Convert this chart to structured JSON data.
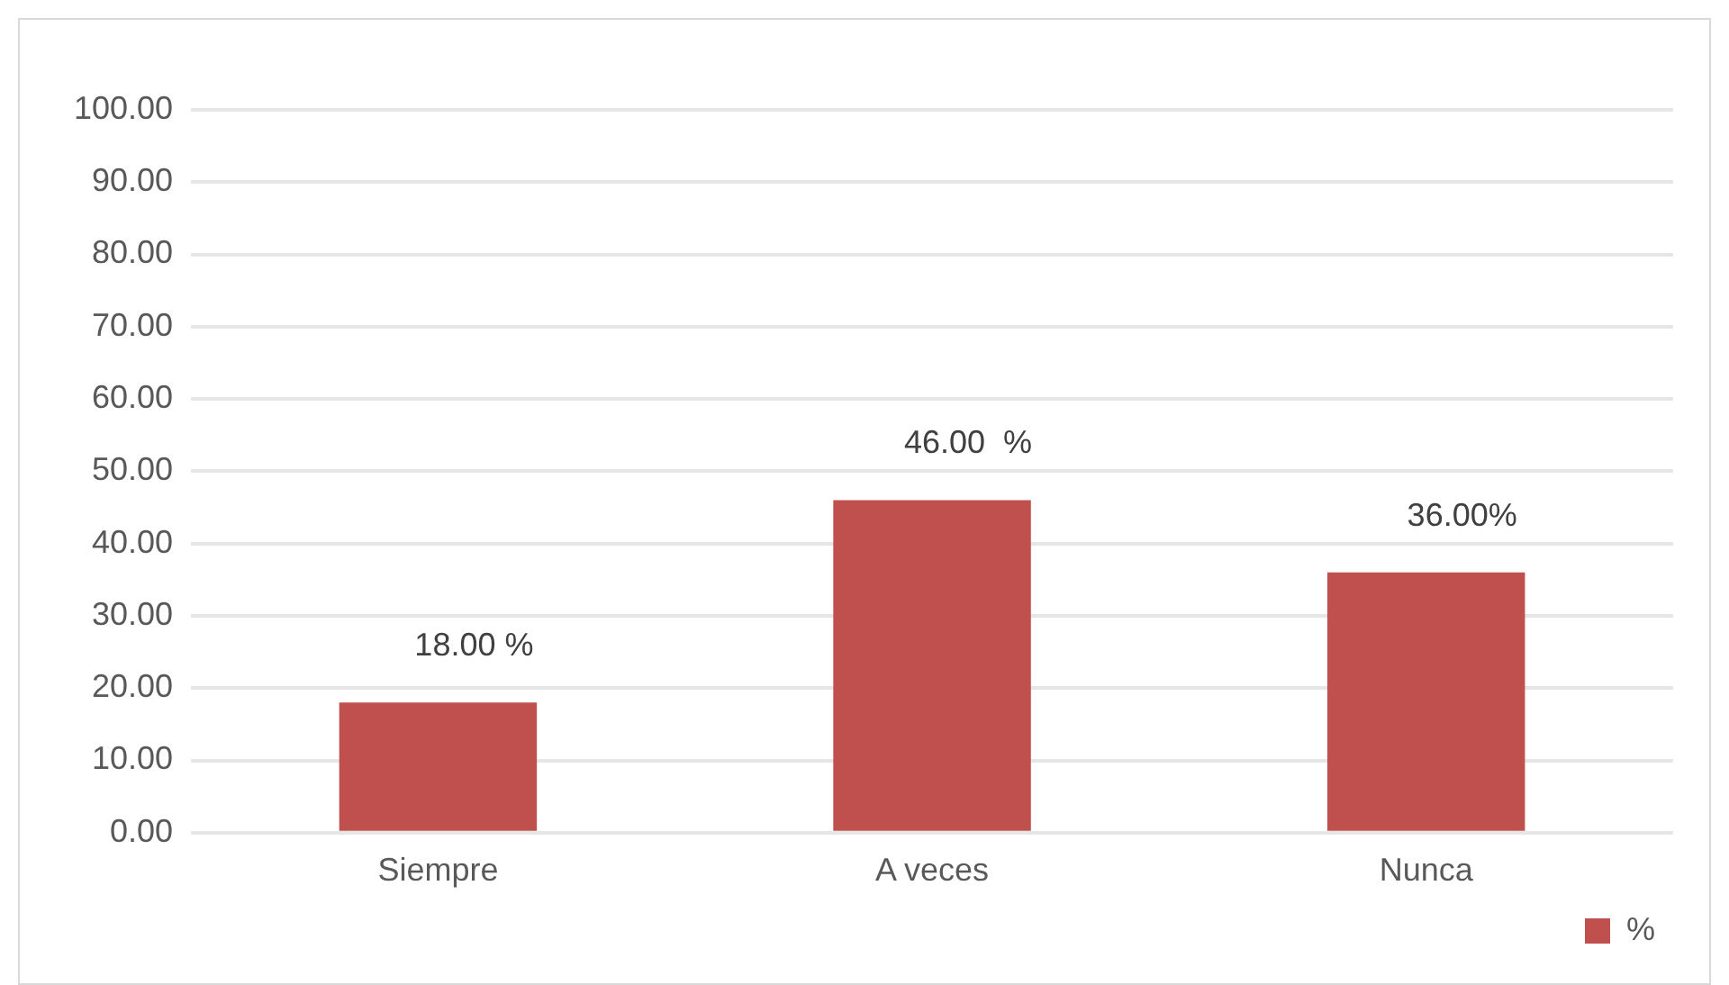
{
  "chart_data": {
    "type": "bar",
    "categories": [
      "Siempre",
      "A veces",
      "Nunca"
    ],
    "series": [
      {
        "name": "%",
        "color": "#c0504d",
        "values": [
          18,
          46,
          36
        ],
        "value_labels": [
          "18.00 %",
          "46.00  %",
          "36.00%"
        ]
      }
    ],
    "ylim": [
      0,
      100
    ],
    "yticks": [
      {
        "value": 0,
        "label": "0.00"
      },
      {
        "value": 10,
        "label": "10.00"
      },
      {
        "value": 20,
        "label": "20.00"
      },
      {
        "value": 30,
        "label": "30.00"
      },
      {
        "value": 40,
        "label": "40.00"
      },
      {
        "value": 50,
        "label": "50.00"
      },
      {
        "value": 60,
        "label": "60.00"
      },
      {
        "value": 70,
        "label": "70.00"
      },
      {
        "value": 80,
        "label": "80.00"
      },
      {
        "value": 90,
        "label": "90.00"
      },
      {
        "value": 100,
        "label": "100.00"
      }
    ],
    "grid": "y",
    "legend": "bottom right"
  }
}
